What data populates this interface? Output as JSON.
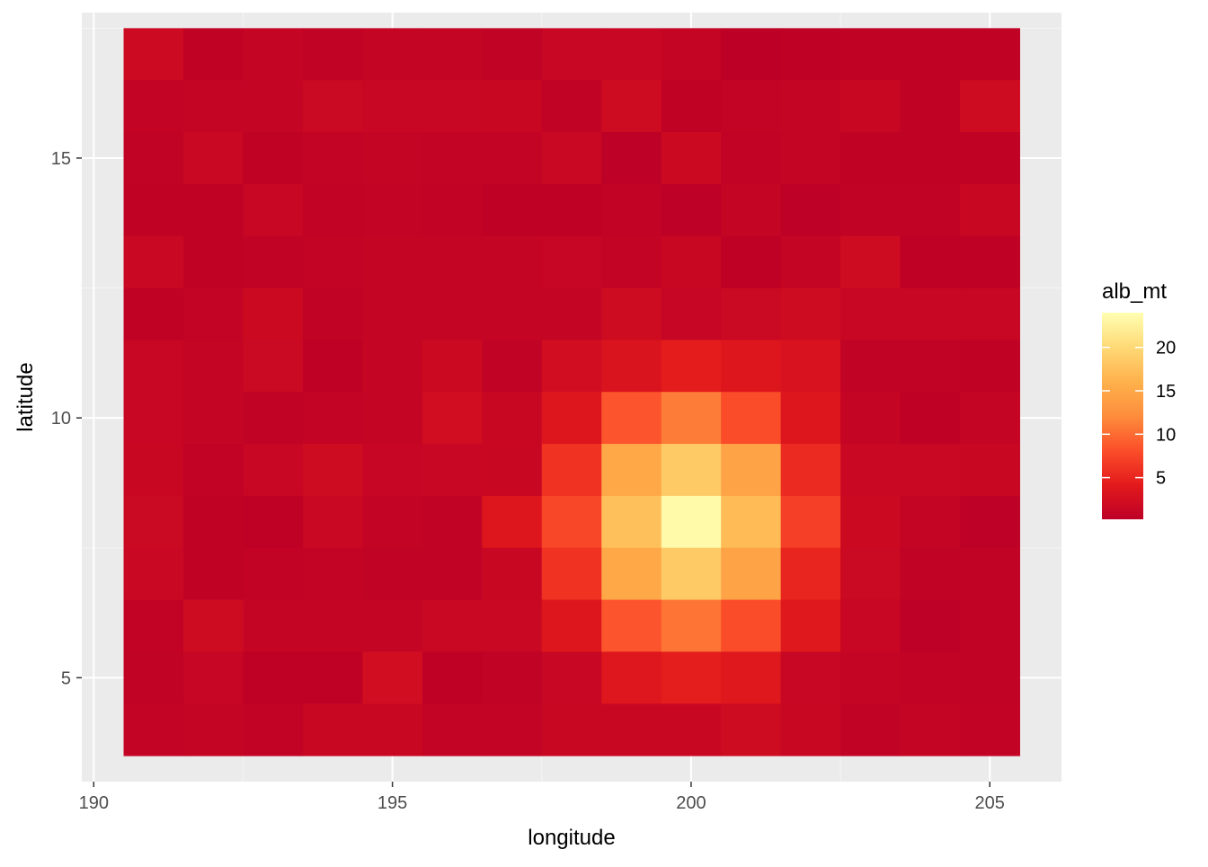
{
  "chart_data": {
    "type": "heatmap",
    "xlabel": "longitude",
    "ylabel": "latitude",
    "x_ticks": [
      190,
      195,
      200,
      205
    ],
    "y_ticks": [
      5,
      10,
      15
    ],
    "xlim": [
      189.8,
      206.2
    ],
    "ylim": [
      3.0,
      17.8
    ],
    "tile_width": 1,
    "tile_height": 1,
    "x": [
      191,
      192,
      193,
      194,
      195,
      196,
      197,
      198,
      199,
      200,
      201,
      202,
      203,
      204,
      205
    ],
    "y": [
      17,
      16,
      15,
      14,
      13,
      12,
      11,
      10,
      9,
      8,
      7,
      6,
      5,
      4
    ],
    "values": [
      [
        1.8,
        0.5,
        0.9,
        0.6,
        0.9,
        0.9,
        0.6,
        1.2,
        1.2,
        1.0,
        0.2,
        0.4,
        0.5,
        0.5,
        0.5
      ],
      [
        0.8,
        0.9,
        1.0,
        1.6,
        1.2,
        1.2,
        1.4,
        0.6,
        2.0,
        0.5,
        0.8,
        0.9,
        1.3,
        0.5,
        2.0
      ],
      [
        0.6,
        1.5,
        0.5,
        0.8,
        0.9,
        0.8,
        0.8,
        1.5,
        0.3,
        1.7,
        0.7,
        1.0,
        0.5,
        0.5,
        0.5
      ],
      [
        0.5,
        0.5,
        1.2,
        0.7,
        0.8,
        0.7,
        0.4,
        0.4,
        0.7,
        0.3,
        0.9,
        0.3,
        0.6,
        0.6,
        1.3
      ],
      [
        1.5,
        0.5,
        0.6,
        0.8,
        0.9,
        0.9,
        1.0,
        1.1,
        0.8,
        1.4,
        0.4,
        1.0,
        2.0,
        0.4,
        0.4
      ],
      [
        0.5,
        0.8,
        1.7,
        0.6,
        1.0,
        0.9,
        0.9,
        0.9,
        2.0,
        1.1,
        1.6,
        2.0,
        1.2,
        1.2,
        1.2
      ],
      [
        1.2,
        1.0,
        1.6,
        0.4,
        1.0,
        1.7,
        0.6,
        2.3,
        3.2,
        4.3,
        3.5,
        3.0,
        0.6,
        0.6,
        0.5
      ],
      [
        1.2,
        1.0,
        0.6,
        0.8,
        0.9,
        2.2,
        1.4,
        3.5,
        8.5,
        11.0,
        8.0,
        3.5,
        1.0,
        0.4,
        1.0
      ],
      [
        1.3,
        0.7,
        1.2,
        2.0,
        1.1,
        1.2,
        1.3,
        6.0,
        15.0,
        18.5,
        14.5,
        5.5,
        1.5,
        1.5,
        1.4
      ],
      [
        1.6,
        0.5,
        0.4,
        1.5,
        0.8,
        0.6,
        3.5,
        7.5,
        17.5,
        23.5,
        17.0,
        7.0,
        1.7,
        1.0,
        0.3
      ],
      [
        1.5,
        0.5,
        0.7,
        0.8,
        0.6,
        0.6,
        1.4,
        6.0,
        15.0,
        18.5,
        14.5,
        5.0,
        1.6,
        0.6,
        0.6
      ],
      [
        0.7,
        2.0,
        1.0,
        1.0,
        0.9,
        1.5,
        1.5,
        3.5,
        8.5,
        10.5,
        8.0,
        3.8,
        1.2,
        0.3,
        0.6
      ],
      [
        0.6,
        1.1,
        0.4,
        0.4,
        2.3,
        0.4,
        0.6,
        1.2,
        3.6,
        4.4,
        3.8,
        1.2,
        1.0,
        0.7,
        0.6
      ],
      [
        0.8,
        1.0,
        0.7,
        1.4,
        1.4,
        0.8,
        0.8,
        1.4,
        1.4,
        1.3,
        2.0,
        1.4,
        0.6,
        0.9,
        0.7
      ]
    ],
    "legend": {
      "title": "alb_mt",
      "labels": [
        5,
        10,
        15,
        20
      ],
      "min": 0.2,
      "max": 24.0,
      "colors": [
        "#bd0026",
        "#e31a1c",
        "#fc4e2a",
        "#fd8d3c",
        "#feb24c",
        "#fed976",
        "#ffffb2"
      ]
    },
    "grid": true,
    "legend_position": "right"
  },
  "colors": {
    "panel_background": "#ebebeb",
    "grid_major": "#ffffff",
    "grid_minor": "#f5f5f5",
    "tick_text": "#4d4d4d",
    "tick_mark": "#333333"
  }
}
